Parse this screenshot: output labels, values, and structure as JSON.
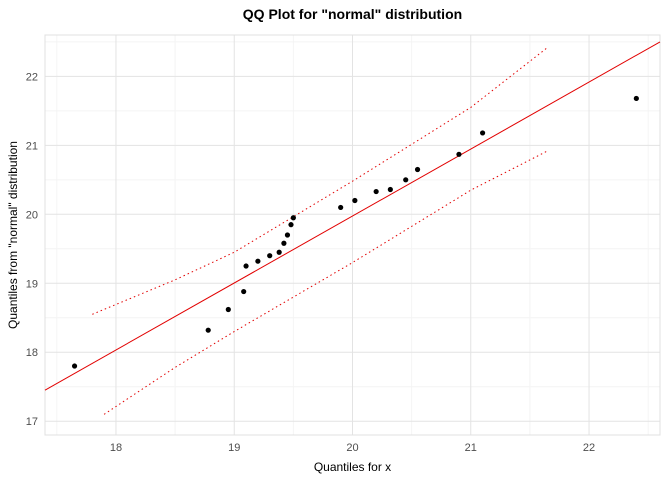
{
  "chart": {
    "title": "QQ Plot for \"normal\" distribution",
    "xlabel": "Quantiles for x",
    "ylabel": "Quantiles from \"normal\" distribution"
  },
  "chart_data": {
    "type": "scatter",
    "title": "QQ Plot for \"normal\" distribution",
    "xlabel": "Quantiles for x",
    "ylabel": "Quantiles from \"normal\" distribution",
    "xlim": [
      17.4,
      22.6
    ],
    "ylim": [
      16.8,
      22.6
    ],
    "x_ticks": [
      18,
      19,
      20,
      21,
      22
    ],
    "y_ticks": [
      17,
      18,
      19,
      20,
      21,
      22
    ],
    "grid": true,
    "legend": "none",
    "points": [
      [
        17.65,
        17.8
      ],
      [
        18.78,
        18.32
      ],
      [
        18.95,
        18.62
      ],
      [
        19.08,
        18.88
      ],
      [
        19.1,
        19.25
      ],
      [
        19.2,
        19.32
      ],
      [
        19.3,
        19.4
      ],
      [
        19.38,
        19.45
      ],
      [
        19.42,
        19.58
      ],
      [
        19.45,
        19.7
      ],
      [
        19.48,
        19.85
      ],
      [
        19.5,
        19.95
      ],
      [
        19.9,
        20.1
      ],
      [
        20.02,
        20.2
      ],
      [
        20.2,
        20.33
      ],
      [
        20.32,
        20.36
      ],
      [
        20.45,
        20.5
      ],
      [
        20.55,
        20.65
      ],
      [
        20.9,
        20.87
      ],
      [
        21.1,
        21.18
      ],
      [
        22.4,
        21.68
      ]
    ],
    "reference_line": {
      "x1": 17.4,
      "y1": 17.45,
      "x2": 22.6,
      "y2": 22.5
    },
    "confidence_bands": {
      "upper": [
        [
          17.8,
          18.55
        ],
        [
          18.5,
          19.05
        ],
        [
          19.0,
          19.45
        ],
        [
          20.0,
          20.48
        ],
        [
          21.0,
          21.55
        ],
        [
          21.65,
          22.42
        ]
      ],
      "lower": [
        [
          17.9,
          17.1
        ],
        [
          18.5,
          17.78
        ],
        [
          19.0,
          18.3
        ],
        [
          20.0,
          19.3
        ],
        [
          21.0,
          20.35
        ],
        [
          21.65,
          20.92
        ]
      ],
      "style": "dotted"
    },
    "colors": {
      "point": "#000000",
      "line": "#e20000",
      "band": "#e20000",
      "grid_major": "#e3e3e3",
      "grid_minor": "#f4f4f4",
      "panel_border": "#e0e0e0",
      "tick_label": "#4d4d4d",
      "background": "#ffffff"
    }
  }
}
